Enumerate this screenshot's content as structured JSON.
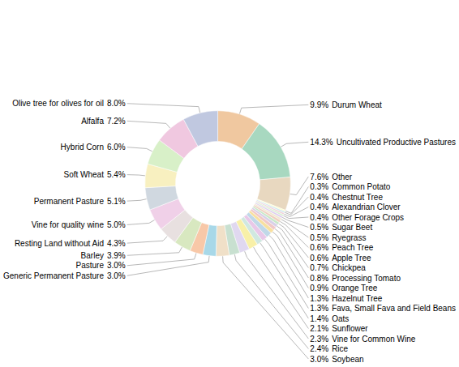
{
  "chart_data": {
    "type": "donut",
    "categories": [
      "Durum Wheat",
      "Uncultivated Productive Pastures",
      "Other",
      "Common Potato",
      "Chestnut Tree",
      "Alexandrian Clover",
      "Other Forage Crops",
      "Sugar Beet",
      "Ryegrass",
      "Peach Tree",
      "Apple Tree",
      "Chickpea",
      "Processing Tomato",
      "Orange Tree",
      "Hazelnut Tree",
      "Fava, Small Fava and Field Beans",
      "Oats",
      "Sunflower",
      "Vine for Common Wine",
      "Rice",
      "Soybean",
      "Generic Permanent Pasture",
      "Pasture",
      "Barley",
      "Resting Land without Aid",
      "Vine for quality wine",
      "Permanent Pasture",
      "Soft Wheat",
      "Hybrid Corn",
      "Alfalfa",
      "Olive tree for olives for oil"
    ],
    "values": [
      9.9,
      14.3,
      7.6,
      0.3,
      0.4,
      0.4,
      0.4,
      0.5,
      0.5,
      0.6,
      0.6,
      0.7,
      0.8,
      0.9,
      1.3,
      1.3,
      1.4,
      2.1,
      2.3,
      2.4,
      3.0,
      3.0,
      3.0,
      3.9,
      4.3,
      5.0,
      5.1,
      5.4,
      6.0,
      7.2,
      8.0
    ],
    "value_labels": [
      "9.9%",
      "14.3%",
      "7.6%",
      "0.3%",
      "0.4%",
      "0.4%",
      "0.4%",
      "0.5%",
      "0.5%",
      "0.6%",
      "0.6%",
      "0.7%",
      "0.8%",
      "0.9%",
      "1.3%",
      "1.3%",
      "1.4%",
      "2.1%",
      "2.3%",
      "2.4%",
      "3.0%",
      "3.0%",
      "3.0%",
      "3.9%",
      "4.3%",
      "5.0%",
      "5.1%",
      "5.4%",
      "6.0%",
      "7.2%",
      "8.0%"
    ],
    "colors": [
      "#f0c8a0",
      "#a8d8c0",
      "#e8d8c0",
      "#ffffc0",
      "#d0e8f0",
      "#f0d0d8",
      "#d8f0d0",
      "#e0d0f0",
      "#f0e8d0",
      "#f0d0c0",
      "#c8e8c8",
      "#d8d0e8",
      "#f0c8c8",
      "#f8e0a0",
      "#c0d8e8",
      "#e8c8e8",
      "#d0e8e0",
      "#f8f0a8",
      "#e0d8f0",
      "#c8e0d0",
      "#f0e0c8",
      "#a8d8e8",
      "#f8c8a8",
      "#d8e8c0",
      "#e8e0e0",
      "#f0d0e8",
      "#d0d8e0",
      "#f8f0c0",
      "#d8f0c8",
      "#f0c8e0",
      "#c0c8e0"
    ],
    "data_labels": true
  }
}
